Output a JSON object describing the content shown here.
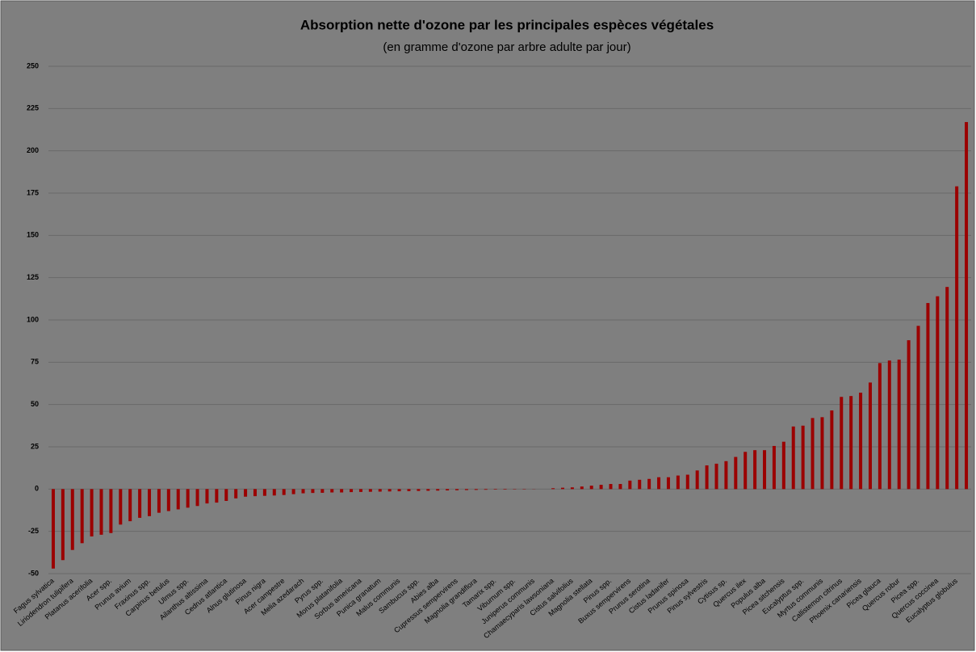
{
  "chart_data": {
    "type": "bar",
    "title": "Absorption nette d'ozone par les principales espèces végétales",
    "subtitle": "(en gramme d'ozone par arbre adulte par jour)",
    "categories": [
      "Fagus sylvatica",
      null,
      "Liriodendron tulipifera",
      null,
      "Platanus acerifolia",
      null,
      "Acer spp.",
      null,
      "Prunus avium",
      null,
      "Fraxinus spp.",
      null,
      "Carpinus betulus",
      null,
      "Ulmus spp.",
      null,
      "Ailanthus altissima",
      null,
      "Cedrus atlantica",
      null,
      "Alnus glutinosa",
      null,
      "Pinus nigra",
      null,
      "Acer campestre",
      null,
      "Melia azedarach",
      null,
      "Pyrus spp.",
      null,
      "Morus platanifolia",
      null,
      "Sorbus americana",
      null,
      "Punica granatum",
      null,
      "Malus communis",
      null,
      "Sambucus spp.",
      null,
      "Abies alba",
      null,
      "Cupressus sempervirens",
      null,
      "Magnolia grandiflora",
      null,
      "Tamarix spp.",
      null,
      "Viburnum spp.",
      null,
      "Juniperus communis",
      null,
      "Chamaecyparis lawsoniana",
      null,
      "Cistus salvifolius",
      null,
      "Magnolia stellata",
      null,
      "Pinus spp.",
      null,
      "Buxus sempervirens",
      null,
      "Prunus serotina",
      null,
      "Cistus ladanifer",
      null,
      "Prunus spinosa",
      null,
      "Pinus sylvestris",
      null,
      "Cytisus sp.",
      null,
      "Quercus ilex",
      null,
      "Populus alba",
      null,
      "Picea sitchensis",
      null,
      "Eucalyptus spp.",
      null,
      "Myrtus communis",
      null,
      "Callistemon citrinus",
      null,
      "Phoenix canariensis",
      null,
      "Picea glauca",
      null,
      "Quercus robur",
      null,
      "Picea spp.",
      null,
      "Quercus coccinea",
      null,
      "Eucalyptus globulus",
      null
    ],
    "values": [
      -47,
      -42,
      -36,
      -32,
      -28,
      -27,
      -26,
      -21,
      -19,
      -17,
      -16,
      -14,
      -13,
      -12,
      -11,
      -10,
      -8.5,
      -8,
      -7,
      -5.5,
      -4.5,
      -4.2,
      -4,
      -3.8,
      -3.5,
      -3,
      -2.5,
      -2.3,
      -2.2,
      -2,
      -2,
      -1.8,
      -1.7,
      -1.6,
      -1.5,
      -1.4,
      -1.3,
      -1.2,
      -1.1,
      -1,
      -0.9,
      -0.8,
      -0.7,
      -0.6,
      -0.5,
      -0.4,
      -0.3,
      -0.3,
      -0.2,
      -0.2,
      -0.1,
      0,
      0.5,
      0.8,
      1,
      1.5,
      2,
      2.5,
      3,
      3,
      5,
      5.5,
      6,
      7,
      7,
      8,
      8.5,
      11,
      14,
      15,
      16.5,
      19,
      22,
      23,
      23,
      25.5,
      28,
      37,
      37.5,
      42,
      42.5,
      46.5,
      54.5,
      55,
      57,
      63,
      74.5,
      76,
      76.5,
      88,
      96.5,
      110,
      114,
      119.5,
      179,
      217
    ],
    "color": "#9b0000",
    "ylim": [
      -50,
      250
    ],
    "yticks": [
      -50,
      -25,
      0,
      25,
      50,
      75,
      100,
      125,
      150,
      175,
      200,
      225,
      250
    ],
    "grid": true
  }
}
